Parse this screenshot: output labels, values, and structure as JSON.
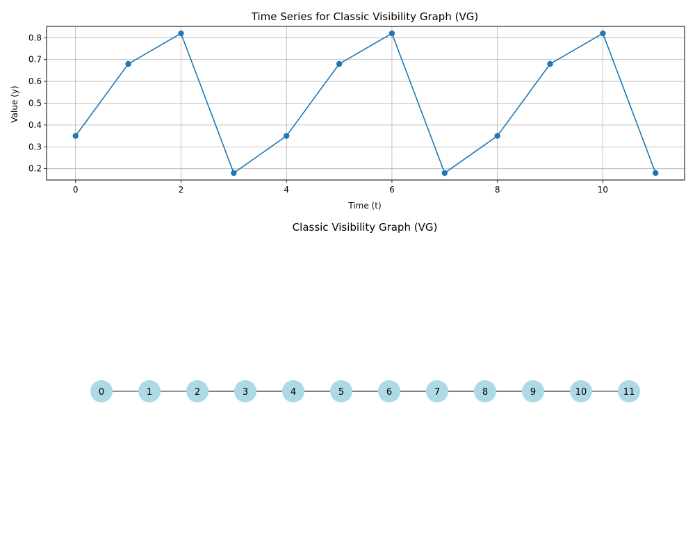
{
  "chart_data": [
    {
      "type": "line",
      "title": "Time Series for Classic Visibility Graph (VG)",
      "xlabel": "Time (t)",
      "ylabel": "Value (y)",
      "x": [
        0,
        1,
        2,
        3,
        4,
        5,
        6,
        7,
        8,
        9,
        10,
        11
      ],
      "series": [
        {
          "values": [
            0.35,
            0.68,
            0.82,
            0.18,
            0.35,
            0.68,
            0.82,
            0.18,
            0.35,
            0.68,
            0.82,
            0.18
          ]
        }
      ],
      "xlim": [
        -0.55,
        11.55
      ],
      "ylim": [
        0.148,
        0.852
      ],
      "xticks": [
        0,
        2,
        4,
        6,
        8,
        10
      ],
      "yticks": [
        0.2,
        0.3,
        0.4,
        0.5,
        0.6,
        0.7,
        0.8
      ],
      "xtick_labels": [
        "0",
        "2",
        "4",
        "6",
        "8",
        "10"
      ],
      "ytick_labels": [
        "0.2",
        "0.3",
        "0.4",
        "0.5",
        "0.6",
        "0.7",
        "0.8"
      ],
      "grid": true,
      "line_color": "#1f77b4",
      "marker": "circle"
    },
    {
      "type": "network",
      "title": "Classic Visibility Graph (VG)",
      "nodes": [
        "0",
        "1",
        "2",
        "3",
        "4",
        "5",
        "6",
        "7",
        "8",
        "9",
        "10",
        "11"
      ],
      "edges": [
        [
          0,
          1
        ],
        [
          1,
          2
        ],
        [
          2,
          3
        ],
        [
          3,
          4
        ],
        [
          4,
          5
        ],
        [
          5,
          6
        ],
        [
          6,
          7
        ],
        [
          7,
          8
        ],
        [
          8,
          9
        ],
        [
          9,
          10
        ],
        [
          10,
          11
        ],
        [
          2,
          4
        ],
        [
          2,
          6
        ],
        [
          4,
          6
        ],
        [
          6,
          8
        ],
        [
          6,
          10
        ],
        [
          8,
          10
        ]
      ],
      "node_color": "#add8e6",
      "edge_color": "#000000",
      "layout": "horizontal-line"
    }
  ]
}
